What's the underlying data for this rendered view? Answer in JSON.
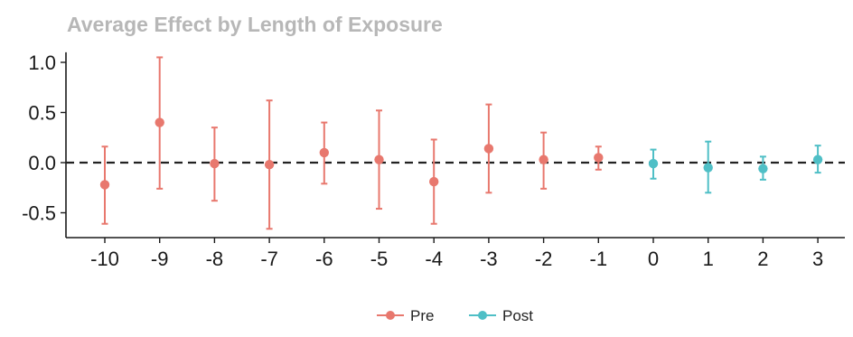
{
  "chart_data": {
    "type": "scatter",
    "title": "Average Effect by Length of Exposure",
    "xlabel": "",
    "ylabel": "",
    "x": [
      -10,
      -9,
      -8,
      -7,
      -6,
      -5,
      -4,
      -3,
      -2,
      -1,
      0,
      1,
      2,
      3
    ],
    "x_ticks": [
      "-10",
      "-9",
      "-8",
      "-7",
      "-6",
      "-5",
      "-4",
      "-3",
      "-2",
      "-1",
      "0",
      "1",
      "2",
      "3"
    ],
    "y_ticks": [
      "1.0",
      "0.5",
      "0.0",
      "-0.5"
    ],
    "ylim": [
      -0.75,
      1.1
    ],
    "reference_line": {
      "y": 0,
      "style": "dashed"
    },
    "series": [
      {
        "name": "Pre",
        "color": "#e8786e",
        "points": [
          {
            "x": -10,
            "y": -0.22,
            "lower": -0.61,
            "upper": 0.16
          },
          {
            "x": -9,
            "y": 0.4,
            "lower": -0.26,
            "upper": 1.05
          },
          {
            "x": -8,
            "y": -0.01,
            "lower": -0.38,
            "upper": 0.35
          },
          {
            "x": -7,
            "y": -0.02,
            "lower": -0.66,
            "upper": 0.62
          },
          {
            "x": -6,
            "y": 0.1,
            "lower": -0.21,
            "upper": 0.4
          },
          {
            "x": -5,
            "y": 0.03,
            "lower": -0.46,
            "upper": 0.52
          },
          {
            "x": -4,
            "y": -0.19,
            "lower": -0.61,
            "upper": 0.23
          },
          {
            "x": -3,
            "y": 0.14,
            "lower": -0.3,
            "upper": 0.58
          },
          {
            "x": -2,
            "y": 0.03,
            "lower": -0.26,
            "upper": 0.3
          },
          {
            "x": -1,
            "y": 0.05,
            "lower": -0.07,
            "upper": 0.16
          }
        ]
      },
      {
        "name": "Post",
        "color": "#4fbfc6",
        "points": [
          {
            "x": 0,
            "y": -0.01,
            "lower": -0.16,
            "upper": 0.13
          },
          {
            "x": 1,
            "y": -0.05,
            "lower": -0.3,
            "upper": 0.21
          },
          {
            "x": 2,
            "y": -0.06,
            "lower": -0.17,
            "upper": 0.06
          },
          {
            "x": 3,
            "y": 0.03,
            "lower": -0.1,
            "upper": 0.17
          }
        ]
      }
    ],
    "legend": {
      "position": "bottom",
      "entries": [
        "Pre",
        "Post"
      ]
    },
    "grid": false
  }
}
